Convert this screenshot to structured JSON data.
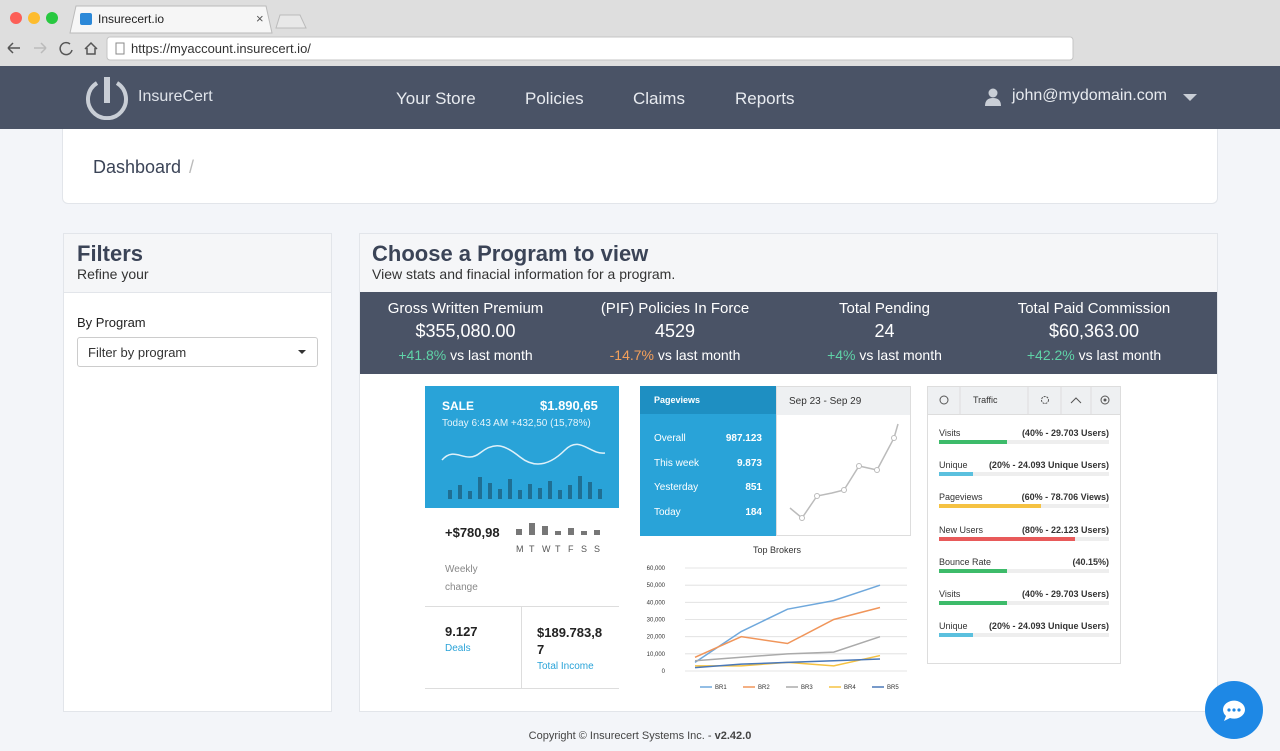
{
  "browser": {
    "tab_title": "Insurecert.io",
    "url": "https://myaccount.insurecert.io/"
  },
  "nav": {
    "brand": "InsureCert",
    "links": [
      "Your Store",
      "Policies",
      "Claims",
      "Reports"
    ],
    "user": "john@mydomain.com"
  },
  "breadcrumb": {
    "current": "Dashboard",
    "separator": "/"
  },
  "filters": {
    "title": "Filters",
    "subtitle": "Refine your",
    "label": "By Program",
    "select": "Filter by program"
  },
  "program": {
    "title": "Choose a Program to view",
    "subtitle": "View stats and finacial information for a program."
  },
  "stats": [
    {
      "label": "Gross Written Premium",
      "value": "$355,080.00",
      "change": "+41.8%",
      "color": "#5fd3a8",
      "suffix": "vs last month"
    },
    {
      "label": "(PIF) Policies In Force",
      "value": "4529",
      "change": "-14.7%",
      "color": "#f5a05a",
      "suffix": "vs last month"
    },
    {
      "label": "Total Pending",
      "value": "24",
      "change": "+4%",
      "color": "#5fd3a8",
      "suffix": "vs last month"
    },
    {
      "label": "Total Paid Commission",
      "value": "$60,363.00",
      "change": "+42.2%",
      "color": "#5fd3a8",
      "suffix": "vs last month"
    }
  ],
  "preview": {
    "sale": {
      "title": "SALE",
      "amount": "$1.890,65",
      "detail": "Today 6:43 AM +432,50 (15,78%)",
      "weekly": "+$780,98",
      "weekly_label": "Weekly change",
      "days": [
        "M",
        "T",
        "W",
        "T",
        "F",
        "S",
        "S"
      ],
      "deals": "9.127",
      "deals_label": "Deals",
      "income": "$189.783,87",
      "income_label": "Total Income"
    },
    "pageviews": {
      "title": "Pageviews",
      "range": "Sep 23 - Sep 29",
      "rows": [
        [
          "Overall",
          "987.123"
        ],
        [
          "This week",
          "9.873"
        ],
        [
          "Yesterday",
          "851"
        ],
        [
          "Today",
          "184"
        ]
      ]
    },
    "top_brokers": {
      "type": "line",
      "title": "Top Brokers",
      "ylim": [
        0,
        60000
      ],
      "yticks": [
        0,
        {
          "value": 10000,
          "label": "10,000"
        },
        {
          "value": 20000,
          "label": "20,000"
        },
        {
          "value": 30000,
          "label": "30,000"
        },
        {
          "value": 40000,
          "label": "40,000"
        },
        {
          "value": 50000,
          "label": "50,000"
        },
        {
          "value": 60000,
          "label": "60,000"
        }
      ],
      "grid": true,
      "series": [
        {
          "name": "BR1",
          "color": "#6fa8dc",
          "values": [
            5000,
            23000,
            36000,
            41000,
            50000
          ]
        },
        {
          "name": "BR2",
          "color": "#f0955a",
          "values": [
            8000,
            20000,
            16000,
            30000,
            37000
          ]
        },
        {
          "name": "BR3",
          "color": "#aaaaaa",
          "values": [
            6000,
            8000,
            10000,
            11000,
            20000
          ]
        },
        {
          "name": "BR4",
          "color": "#f5c242",
          "values": [
            3000,
            3000,
            5000,
            3000,
            9000
          ]
        },
        {
          "name": "BR5",
          "color": "#4a78b8",
          "values": [
            2000,
            4000,
            5000,
            6000,
            7000
          ]
        }
      ]
    },
    "traffic": {
      "title": "Traffic",
      "rows": [
        {
          "label": "Visits",
          "detail": "(40% - 29.703 Users)",
          "percent": 40,
          "color": "#3dbb6a"
        },
        {
          "label": "Unique",
          "detail": "(20% - 24.093 Unique Users)",
          "percent": 20,
          "color": "#5bc0de"
        },
        {
          "label": "Pageviews",
          "detail": "(60% - 78.706 Views)",
          "percent": 60,
          "color": "#f5c242"
        },
        {
          "label": "New Users",
          "detail": "(80% - 22.123 Users)",
          "percent": 80,
          "color": "#e85a5a"
        },
        {
          "label": "Bounce Rate",
          "detail": "(40.15%)",
          "percent": 40.15,
          "color": "#3dbb6a"
        },
        {
          "label": "Visits",
          "detail": "(40% - 29.703 Users)",
          "percent": 40,
          "color": "#3dbb6a"
        },
        {
          "label": "Unique",
          "detail": "(20% - 24.093 Unique Users)",
          "percent": 20,
          "color": "#5bc0de"
        }
      ]
    }
  },
  "footer": {
    "text": "Copyright © Insurecert Systems Inc. - ",
    "version": "v2.42.0"
  }
}
